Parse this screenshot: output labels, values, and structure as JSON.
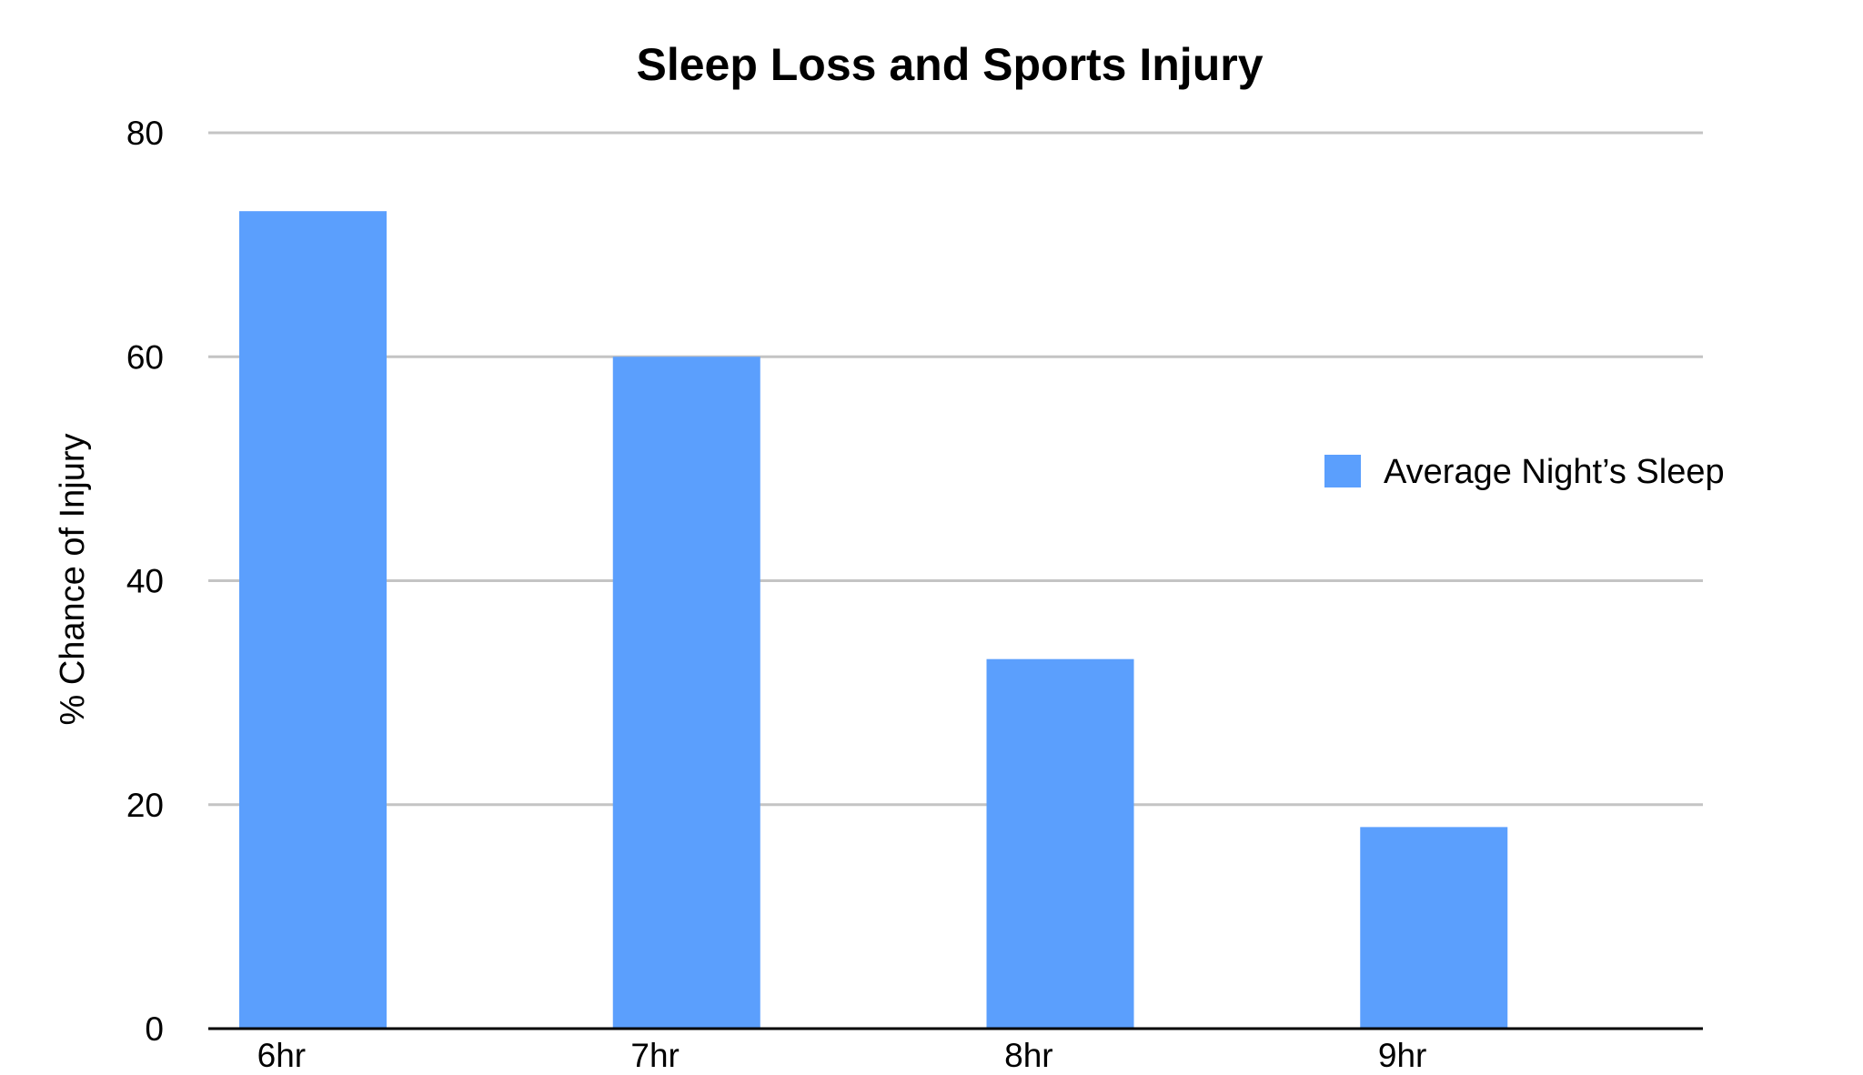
{
  "chart_data": {
    "type": "bar",
    "title": "Sleep Loss and Sports Injury",
    "xlabel": "",
    "ylabel": "% Chance of Injury",
    "categories": [
      "6hr",
      "7hr",
      "8hr",
      "9hr"
    ],
    "series": [
      {
        "name": "Average Night’s Sleep",
        "values": [
          73,
          60,
          33,
          18
        ],
        "color": "#5b9ffd"
      }
    ],
    "ylim": [
      0,
      80
    ],
    "yticks": [
      0,
      20,
      40,
      60,
      80
    ],
    "grid": true,
    "legend": "right"
  }
}
